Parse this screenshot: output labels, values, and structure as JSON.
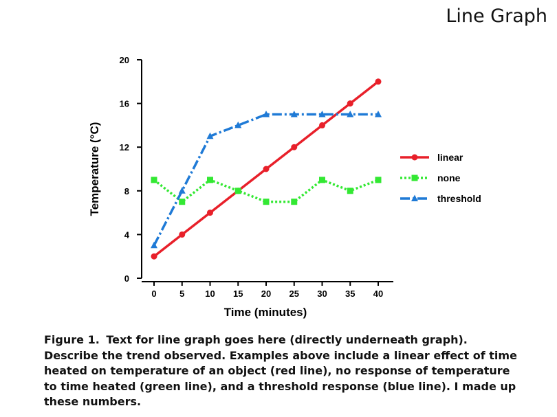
{
  "slide_title": "Line Graph",
  "caption": {
    "label": "Figure 1.",
    "text": "Text for line graph goes here (directly underneath graph).  Describe the trend observed.  Examples above include a linear effect of time heated on temperature of an object (red line), no response of temperature to time  heated (green line), and a threshold response (blue line).  I made up these numbers."
  },
  "chart_data": {
    "type": "line",
    "title": "",
    "xlabel": "Time (minutes)",
    "ylabel": "Temperature (°C)",
    "x": [
      0,
      5,
      10,
      15,
      20,
      25,
      30,
      35,
      40
    ],
    "xlim": [
      0,
      40
    ],
    "ylim": [
      0,
      20
    ],
    "yticks": [
      0,
      4,
      8,
      12,
      16,
      20
    ],
    "grid": false,
    "legend": "right",
    "series": [
      {
        "name": "linear",
        "color": "#e8202a",
        "marker": "circle",
        "line_style": "solid",
        "values": [
          2,
          4,
          6,
          8,
          10,
          12,
          14,
          16,
          18
        ]
      },
      {
        "name": "none",
        "color": "#33e833",
        "marker": "square",
        "line_style": "dotted",
        "values": [
          9,
          7,
          9,
          8,
          7,
          7,
          9,
          8,
          9
        ]
      },
      {
        "name": "threshold",
        "color": "#1f7ad6",
        "marker": "triangle",
        "line_style": "dash-dot",
        "values": [
          3,
          8,
          13,
          14,
          15,
          15,
          15,
          15,
          15
        ]
      }
    ]
  }
}
